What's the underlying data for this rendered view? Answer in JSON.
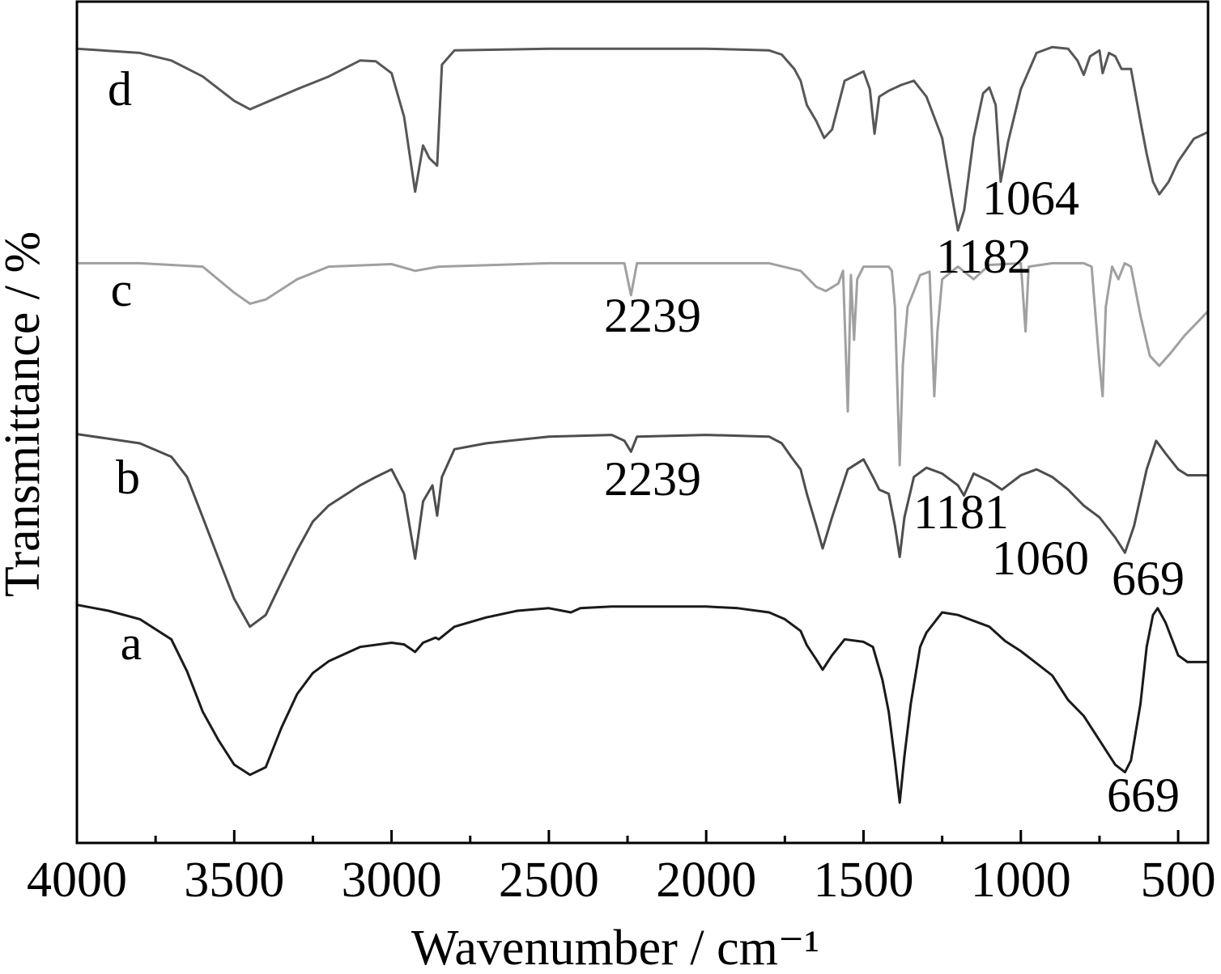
{
  "chart_data": {
    "type": "line",
    "title": "",
    "xlabel": "Wavenumber / cm⁻¹",
    "ylabel": "Transmittance / %",
    "xlim": [
      4000,
      405
    ],
    "ylim": [
      0,
      100
    ],
    "x_ticks": [
      4000,
      3500,
      3000,
      2500,
      2000,
      1500,
      1000,
      500
    ],
    "x_tick_labels": [
      "4000",
      "3500",
      "3000",
      "2500",
      "2000",
      "1500",
      "1000",
      "500"
    ],
    "x_minor_tick_step": 250,
    "y_ticks": [],
    "grid": false,
    "series": [
      {
        "name": "a",
        "color": "#1a1a1a",
        "points": [
          [
            4000,
            28.3
          ],
          [
            3900,
            27.6
          ],
          [
            3800,
            26.6
          ],
          [
            3700,
            24.2
          ],
          [
            3650,
            20.4
          ],
          [
            3600,
            15.6
          ],
          [
            3550,
            12.2
          ],
          [
            3500,
            9.3
          ],
          [
            3450,
            8.1
          ],
          [
            3400,
            9.0
          ],
          [
            3350,
            13.7
          ],
          [
            3300,
            17.7
          ],
          [
            3250,
            20.2
          ],
          [
            3200,
            21.6
          ],
          [
            3100,
            23.3
          ],
          [
            3000,
            23.8
          ],
          [
            2960,
            23.6
          ],
          [
            2925,
            22.7
          ],
          [
            2900,
            23.8
          ],
          [
            2860,
            24.4
          ],
          [
            2850,
            24.2
          ],
          [
            2800,
            25.7
          ],
          [
            2700,
            26.8
          ],
          [
            2600,
            27.6
          ],
          [
            2500,
            27.9
          ],
          [
            2430,
            27.4
          ],
          [
            2400,
            27.9
          ],
          [
            2300,
            28.1
          ],
          [
            2000,
            28.1
          ],
          [
            1900,
            27.9
          ],
          [
            1800,
            27.4
          ],
          [
            1750,
            26.6
          ],
          [
            1700,
            25.2
          ],
          [
            1680,
            23.5
          ],
          [
            1650,
            21.8
          ],
          [
            1630,
            20.6
          ],
          [
            1600,
            22.3
          ],
          [
            1560,
            24.2
          ],
          [
            1500,
            23.9
          ],
          [
            1470,
            23.3
          ],
          [
            1440,
            19.4
          ],
          [
            1420,
            15.6
          ],
          [
            1400,
            9.8
          ],
          [
            1385,
            4.8
          ],
          [
            1370,
            10.3
          ],
          [
            1350,
            16.5
          ],
          [
            1320,
            23.3
          ],
          [
            1300,
            25.0
          ],
          [
            1250,
            27.4
          ],
          [
            1200,
            27.1
          ],
          [
            1100,
            25.7
          ],
          [
            1050,
            24.0
          ],
          [
            1000,
            22.8
          ],
          [
            900,
            19.9
          ],
          [
            850,
            17.0
          ],
          [
            800,
            15.1
          ],
          [
            750,
            12.2
          ],
          [
            700,
            9.3
          ],
          [
            669,
            8.4
          ],
          [
            650,
            9.8
          ],
          [
            620,
            16.5
          ],
          [
            600,
            23.3
          ],
          [
            580,
            27.1
          ],
          [
            565,
            27.9
          ],
          [
            540,
            26.2
          ],
          [
            500,
            22.3
          ],
          [
            470,
            21.5
          ],
          [
            405,
            21.5
          ]
        ]
      },
      {
        "name": "b",
        "color": "#4d4d4d",
        "points": [
          [
            4000,
            48.6
          ],
          [
            3800,
            47.5
          ],
          [
            3700,
            45.9
          ],
          [
            3650,
            43.5
          ],
          [
            3600,
            38.7
          ],
          [
            3550,
            33.8
          ],
          [
            3500,
            29.0
          ],
          [
            3450,
            25.7
          ],
          [
            3400,
            27.1
          ],
          [
            3350,
            31.0
          ],
          [
            3300,
            34.8
          ],
          [
            3250,
            38.2
          ],
          [
            3200,
            40.1
          ],
          [
            3100,
            42.5
          ],
          [
            3050,
            43.5
          ],
          [
            3000,
            44.4
          ],
          [
            2960,
            41.5
          ],
          [
            2925,
            33.8
          ],
          [
            2900,
            40.6
          ],
          [
            2870,
            42.5
          ],
          [
            2855,
            38.9
          ],
          [
            2840,
            43.5
          ],
          [
            2800,
            46.8
          ],
          [
            2700,
            47.5
          ],
          [
            2500,
            48.3
          ],
          [
            2300,
            48.5
          ],
          [
            2260,
            47.8
          ],
          [
            2239,
            46.5
          ],
          [
            2220,
            48.3
          ],
          [
            2000,
            48.5
          ],
          [
            1800,
            48.3
          ],
          [
            1760,
            47.5
          ],
          [
            1730,
            45.9
          ],
          [
            1700,
            44.4
          ],
          [
            1680,
            41.5
          ],
          [
            1650,
            37.7
          ],
          [
            1630,
            35.0
          ],
          [
            1600,
            38.7
          ],
          [
            1550,
            44.4
          ],
          [
            1500,
            45.6
          ],
          [
            1470,
            43.5
          ],
          [
            1450,
            42.0
          ],
          [
            1420,
            41.5
          ],
          [
            1400,
            37.7
          ],
          [
            1385,
            34.0
          ],
          [
            1370,
            38.7
          ],
          [
            1340,
            43.5
          ],
          [
            1300,
            44.6
          ],
          [
            1250,
            43.9
          ],
          [
            1200,
            42.5
          ],
          [
            1181,
            41.3
          ],
          [
            1150,
            43.9
          ],
          [
            1100,
            43.0
          ],
          [
            1060,
            42.0
          ],
          [
            1000,
            43.7
          ],
          [
            950,
            44.4
          ],
          [
            900,
            43.5
          ],
          [
            850,
            42.0
          ],
          [
            800,
            40.1
          ],
          [
            750,
            38.7
          ],
          [
            700,
            36.3
          ],
          [
            669,
            34.5
          ],
          [
            640,
            37.7
          ],
          [
            600,
            44.4
          ],
          [
            570,
            47.8
          ],
          [
            540,
            46.3
          ],
          [
            500,
            44.4
          ],
          [
            470,
            43.7
          ],
          [
            405,
            43.7
          ]
        ]
      },
      {
        "name": "c",
        "color": "#a0a0a0",
        "points": [
          [
            4000,
            68.9
          ],
          [
            3800,
            68.9
          ],
          [
            3600,
            68.5
          ],
          [
            3500,
            65.4
          ],
          [
            3450,
            64.1
          ],
          [
            3400,
            64.6
          ],
          [
            3300,
            67.0
          ],
          [
            3200,
            68.5
          ],
          [
            3000,
            68.8
          ],
          [
            2925,
            68.0
          ],
          [
            2850,
            68.5
          ],
          [
            2500,
            68.9
          ],
          [
            2260,
            68.9
          ],
          [
            2239,
            65.1
          ],
          [
            2220,
            68.9
          ],
          [
            1800,
            68.9
          ],
          [
            1700,
            68.0
          ],
          [
            1650,
            66.1
          ],
          [
            1620,
            65.6
          ],
          [
            1580,
            66.5
          ],
          [
            1565,
            68.0
          ],
          [
            1550,
            51.3
          ],
          [
            1540,
            67.5
          ],
          [
            1530,
            59.8
          ],
          [
            1520,
            67.0
          ],
          [
            1500,
            68.5
          ],
          [
            1420,
            68.5
          ],
          [
            1410,
            68.0
          ],
          [
            1400,
            63.7
          ],
          [
            1385,
            44.9
          ],
          [
            1375,
            56.9
          ],
          [
            1360,
            63.7
          ],
          [
            1340,
            65.6
          ],
          [
            1320,
            67.5
          ],
          [
            1290,
            67.9
          ],
          [
            1275,
            53.1
          ],
          [
            1265,
            60.8
          ],
          [
            1250,
            67.0
          ],
          [
            1200,
            68.5
          ],
          [
            1150,
            67.0
          ],
          [
            1100,
            68.7
          ],
          [
            1000,
            68.9
          ],
          [
            985,
            60.8
          ],
          [
            975,
            68.5
          ],
          [
            900,
            68.9
          ],
          [
            800,
            68.9
          ],
          [
            775,
            68.5
          ],
          [
            750,
            56.9
          ],
          [
            740,
            53.1
          ],
          [
            730,
            63.7
          ],
          [
            710,
            68.5
          ],
          [
            690,
            67.0
          ],
          [
            670,
            68.9
          ],
          [
            650,
            68.5
          ],
          [
            620,
            62.7
          ],
          [
            590,
            57.9
          ],
          [
            560,
            56.7
          ],
          [
            520,
            58.4
          ],
          [
            480,
            60.3
          ],
          [
            405,
            63.2
          ]
        ]
      },
      {
        "name": "d",
        "color": "#575757",
        "points": [
          [
            4000,
            94.4
          ],
          [
            3800,
            93.9
          ],
          [
            3700,
            93.0
          ],
          [
            3600,
            91.1
          ],
          [
            3500,
            88.2
          ],
          [
            3450,
            87.2
          ],
          [
            3400,
            88.0
          ],
          [
            3300,
            89.6
          ],
          [
            3200,
            91.1
          ],
          [
            3100,
            93.0
          ],
          [
            3050,
            92.9
          ],
          [
            3000,
            91.5
          ],
          [
            2960,
            86.3
          ],
          [
            2925,
            77.4
          ],
          [
            2900,
            82.9
          ],
          [
            2880,
            81.4
          ],
          [
            2855,
            80.5
          ],
          [
            2840,
            92.5
          ],
          [
            2800,
            94.2
          ],
          [
            2500,
            94.4
          ],
          [
            2000,
            94.4
          ],
          [
            1800,
            94.2
          ],
          [
            1760,
            93.7
          ],
          [
            1720,
            92.0
          ],
          [
            1700,
            90.6
          ],
          [
            1680,
            87.7
          ],
          [
            1650,
            85.8
          ],
          [
            1625,
            83.8
          ],
          [
            1600,
            84.8
          ],
          [
            1560,
            90.6
          ],
          [
            1500,
            91.7
          ],
          [
            1480,
            89.6
          ],
          [
            1465,
            84.3
          ],
          [
            1450,
            88.7
          ],
          [
            1420,
            89.4
          ],
          [
            1380,
            90.1
          ],
          [
            1340,
            90.6
          ],
          [
            1300,
            88.7
          ],
          [
            1250,
            83.8
          ],
          [
            1220,
            77.1
          ],
          [
            1200,
            72.8
          ],
          [
            1180,
            75.2
          ],
          [
            1150,
            83.8
          ],
          [
            1120,
            89.1
          ],
          [
            1100,
            89.8
          ],
          [
            1080,
            87.7
          ],
          [
            1064,
            78.6
          ],
          [
            1040,
            83.4
          ],
          [
            1000,
            89.6
          ],
          [
            950,
            93.9
          ],
          [
            900,
            94.6
          ],
          [
            850,
            94.4
          ],
          [
            820,
            93.0
          ],
          [
            800,
            91.3
          ],
          [
            780,
            93.5
          ],
          [
            750,
            94.2
          ],
          [
            740,
            91.5
          ],
          [
            720,
            93.9
          ],
          [
            700,
            93.5
          ],
          [
            680,
            92.0
          ],
          [
            650,
            92.0
          ],
          [
            620,
            85.8
          ],
          [
            600,
            81.9
          ],
          [
            580,
            78.6
          ],
          [
            560,
            77.1
          ],
          [
            530,
            78.6
          ],
          [
            500,
            81.0
          ],
          [
            450,
            83.7
          ],
          [
            405,
            84.5
          ]
        ]
      }
    ],
    "annotations": [
      {
        "text": "1064",
        "series": "d"
      },
      {
        "text": "1182",
        "series": "d"
      },
      {
        "text": "2239",
        "series": "c"
      },
      {
        "text": "2239",
        "series": "b"
      },
      {
        "text": "1181",
        "series": "b"
      },
      {
        "text": "1060",
        "series": "b"
      },
      {
        "text": "669",
        "series": "b"
      },
      {
        "text": "669",
        "series": "a"
      }
    ]
  }
}
